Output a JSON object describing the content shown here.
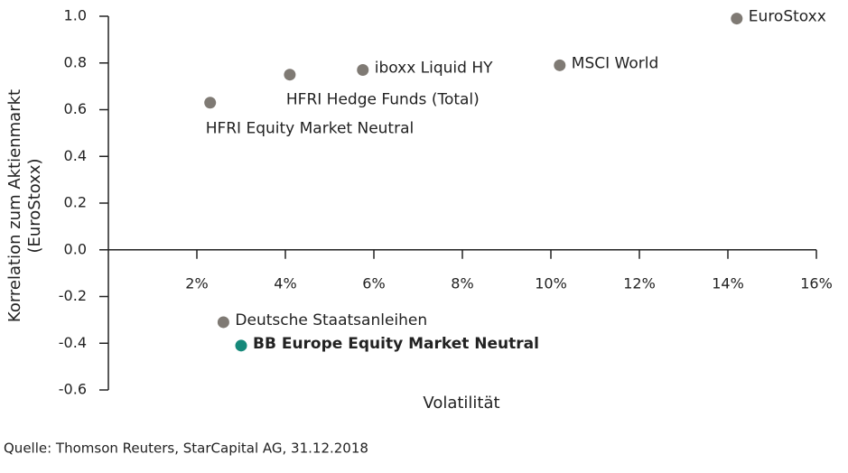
{
  "chart_data": {
    "type": "scatter",
    "xlabel": "Volatilität",
    "ylabel": [
      "Korrelation zum Aktienmarkt",
      "(EuroStoxx)"
    ],
    "source": "Quelle: Thomson Reuters, StarCapital AG, 31.12.2018",
    "xlim": [
      0,
      16
    ],
    "ylim": [
      -0.6,
      1.0
    ],
    "xticks": [
      {
        "value": 2,
        "label": "2%"
      },
      {
        "value": 4,
        "label": "4%"
      },
      {
        "value": 6,
        "label": "6%"
      },
      {
        "value": 8,
        "label": "8%"
      },
      {
        "value": 10,
        "label": "10%"
      },
      {
        "value": 12,
        "label": "12%"
      },
      {
        "value": 14,
        "label": "14%"
      },
      {
        "value": 16,
        "label": "16%"
      }
    ],
    "yticks": [
      {
        "value": 1.0,
        "label": "1.0"
      },
      0.8,
      0.6,
      0.4,
      0.2,
      {
        "value": 0.0,
        "label": "0.0"
      },
      -0.2,
      -0.4,
      -0.6
    ],
    "series": [
      {
        "name": "EuroStoxx",
        "color": "#7f7a74",
        "x": [
          14.2
        ],
        "values": [
          0.99
        ]
      },
      {
        "name": "MSCI World",
        "color": "#7f7a74",
        "x": [
          10.2
        ],
        "values": [
          0.79
        ]
      },
      {
        "name": "iboxx Liquid HY",
        "color": "#7f7a74",
        "x": [
          5.75
        ],
        "values": [
          0.77
        ]
      },
      {
        "name": "HFRI Hedge Funds (Total)",
        "color": "#7f7a74",
        "x": [
          4.1
        ],
        "values": [
          0.75
        ]
      },
      {
        "name": "HFRI Equity Market Neutral",
        "color": "#7f7a74",
        "x": [
          2.3
        ],
        "values": [
          0.63
        ]
      },
      {
        "name": "Deutsche Staatsanleihen",
        "color": "#7f7a74",
        "x": [
          2.6
        ],
        "values": [
          -0.31
        ]
      },
      {
        "name": "BB Europe Equity Market Neutral",
        "color": "#16897a",
        "x": [
          3.0
        ],
        "values": [
          -0.41
        ]
      }
    ]
  }
}
